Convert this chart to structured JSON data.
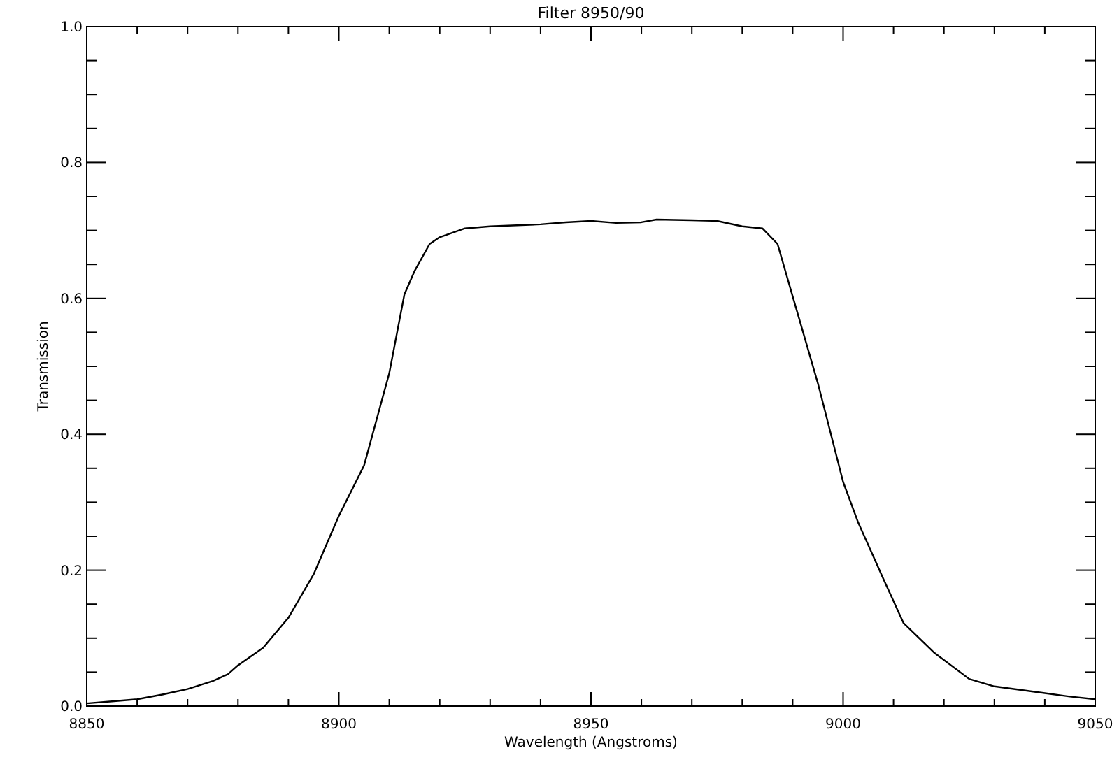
{
  "chart_data": {
    "type": "line",
    "title": "Filter 8950/90",
    "xlabel": "Wavelength (Angstroms)",
    "ylabel": "Transmission",
    "x": [
      8850,
      8855,
      8860,
      8865,
      8870,
      8875,
      8878,
      8880,
      8885,
      8890,
      8895,
      8900,
      8905,
      8910,
      8913,
      8915,
      8918,
      8920,
      8925,
      8930,
      8940,
      8945,
      8950,
      8955,
      8960,
      8963,
      8970,
      8975,
      8980,
      8984,
      8987,
      8990,
      8995,
      9000,
      9003,
      9008,
      9012,
      9018,
      9025,
      9030,
      9040,
      9045,
      9050
    ],
    "series": [
      {
        "color": "#000000",
        "values": [
          0.004,
          0.007,
          0.01,
          0.017,
          0.025,
          0.037,
          0.047,
          0.06,
          0.086,
          0.13,
          0.194,
          0.28,
          0.354,
          0.49,
          0.606,
          0.64,
          0.68,
          0.69,
          0.703,
          0.706,
          0.709,
          0.712,
          0.714,
          0.711,
          0.712,
          0.716,
          0.715,
          0.714,
          0.706,
          0.703,
          0.68,
          0.603,
          0.475,
          0.33,
          0.27,
          0.187,
          0.122,
          0.079,
          0.04,
          0.029,
          0.019,
          0.014,
          0.01
        ]
      }
    ],
    "xlim": [
      8850,
      9050
    ],
    "ylim": [
      0,
      1
    ],
    "xticks": [
      8850,
      {
        "value": 8860,
        "label": null
      },
      {
        "value": 8870,
        "label": null
      },
      {
        "value": 8880,
        "label": null
      },
      {
        "value": 8890,
        "label": null
      },
      8900,
      {
        "value": 8910,
        "label": null
      },
      {
        "value": 8920,
        "label": null
      },
      {
        "value": 8930,
        "label": null
      },
      {
        "value": 8940,
        "label": null
      },
      8950,
      {
        "value": 8960,
        "label": null
      },
      {
        "value": 8970,
        "label": null
      },
      {
        "value": 8980,
        "label": null
      },
      {
        "value": 8990,
        "label": null
      },
      9000,
      {
        "value": 9010,
        "label": null
      },
      {
        "value": 9020,
        "label": null
      },
      {
        "value": 9030,
        "label": null
      },
      {
        "value": 9040,
        "label": null
      },
      9050
    ],
    "yticks": [
      {
        "value": 0,
        "label": "0.0"
      },
      {
        "value": 0.05,
        "label": null
      },
      {
        "value": 0.1,
        "label": null
      },
      {
        "value": 0.15,
        "label": null
      },
      {
        "value": 0.2,
        "label": "0.2"
      },
      {
        "value": 0.25,
        "label": null
      },
      {
        "value": 0.3,
        "label": null
      },
      {
        "value": 0.35,
        "label": null
      },
      {
        "value": 0.4,
        "label": "0.4"
      },
      {
        "value": 0.45,
        "label": null
      },
      {
        "value": 0.5,
        "label": null
      },
      {
        "value": 0.55,
        "label": null
      },
      {
        "value": 0.6,
        "label": "0.6"
      },
      {
        "value": 0.65,
        "label": null
      },
      {
        "value": 0.7,
        "label": null
      },
      {
        "value": 0.75,
        "label": null
      },
      {
        "value": 0.8,
        "label": "0.8"
      },
      {
        "value": 0.85,
        "label": null
      },
      {
        "value": 0.9,
        "label": null
      },
      {
        "value": 0.95,
        "label": null
      },
      {
        "value": 1,
        "label": "1.0"
      }
    ],
    "marker": "none",
    "line_style": "solid",
    "grid": false
  }
}
